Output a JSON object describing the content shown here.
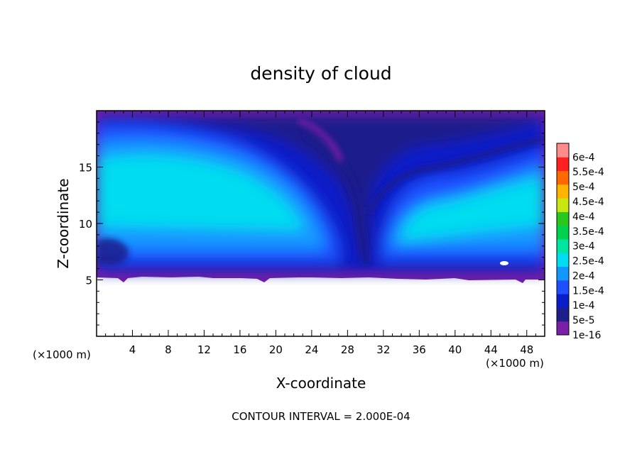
{
  "chart_data": {
    "type": "heatmap",
    "title": "density of cloud",
    "xlabel": "X-coordinate",
    "ylabel": "Z-coordinate",
    "x_unit_left": "(×1000 m)",
    "x_unit_right": "(×1000 m)",
    "footer": "CONTOUR INTERVAL = 2.000E-04",
    "xlim": [
      0,
      50
    ],
    "ylim": [
      0,
      20
    ],
    "x_ticks": [
      4,
      8,
      12,
      16,
      20,
      24,
      28,
      32,
      36,
      40,
      44,
      48
    ],
    "y_ticks": [
      5,
      10,
      15
    ],
    "colorbar": {
      "labels": [
        "1e-16",
        "5e-5",
        "1e-4",
        "1.5e-4",
        "2e-4",
        "2.5e-4",
        "3e-4",
        "3.5e-4",
        "4e-4",
        "4.5e-4",
        "5e-4",
        "5.5e-4",
        "6e-4"
      ],
      "colors": [
        "#7a1fa8",
        "#1e1e8c",
        "#0a1ec8",
        "#1e50ff",
        "#1496ff",
        "#00dcf0",
        "#00e6a0",
        "#00d250",
        "#2ac81e",
        "#c8e614",
        "#ffb400",
        "#ff6a00",
        "#ff2020",
        "#ff8c8c"
      ]
    },
    "cloud_layer": {
      "base_z": 5,
      "top_z": 20
    }
  }
}
